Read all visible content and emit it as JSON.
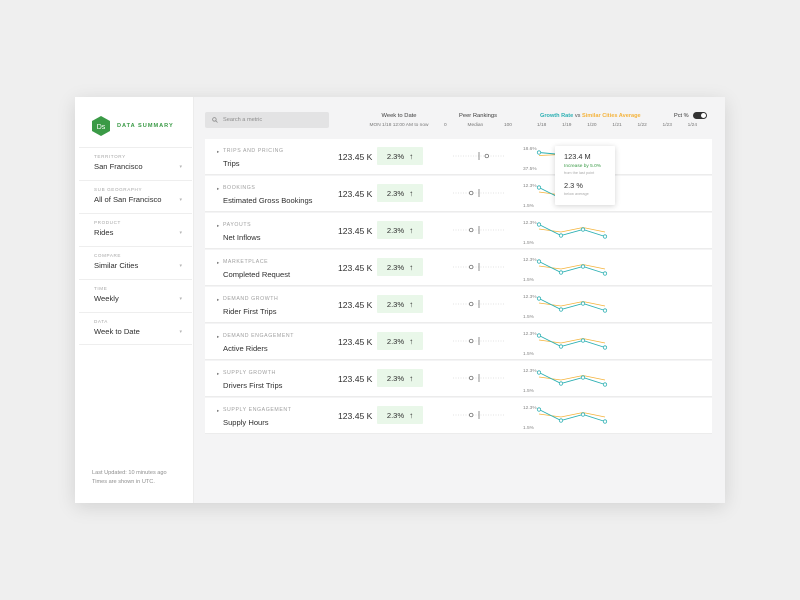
{
  "brand": {
    "logo_text": "Ds",
    "title": "DATA SUMMARY"
  },
  "filters": [
    {
      "label": "TERRITORY",
      "value": "San Francisco"
    },
    {
      "label": "SUB GEOGRAPHY",
      "value": "All of San Francisco"
    },
    {
      "label": "PRODUCT",
      "value": "Rides"
    },
    {
      "label": "COMPARE",
      "value": "Similar Cities"
    },
    {
      "label": "TIME",
      "value": "Weekly"
    },
    {
      "label": "DATA",
      "value": "Week to Date"
    }
  ],
  "footer": {
    "line1": "Last Updated: 10 minutes ago",
    "line2": "Times are shown in UTC."
  },
  "search": {
    "placeholder": "Search a metric"
  },
  "header": {
    "week_to_date": "Week to Date",
    "week_range": "MON 1/18 12:00 AM to now",
    "peer_rankings": "Peer Rankings",
    "peer_ticks": [
      "0",
      "Median",
      "100"
    ],
    "growth_rate": "Growth Rate",
    "vs": "vs",
    "similar_cities": "Similar Cities Average",
    "dates": [
      "1/18",
      "1/19",
      "1/20",
      "1/21",
      "1/22",
      "1/23",
      "1/24"
    ],
    "pct_toggle_label": "Pct %",
    "pct_toggle_on": true
  },
  "colors": {
    "growth": "#2cb0b3",
    "similar": "#f4b33b",
    "brand": "#3a9a46",
    "badge": "#e9f7e9"
  },
  "rows": [
    {
      "category": "TRIPS AND PRICING",
      "metric": "Trips",
      "value": "123.45 K",
      "change": "2.3%",
      "y_max": "18.6%",
      "y_min": "37.5%",
      "peer_percentile": 0.65,
      "growth": [
        0.55,
        0.35,
        -0.45,
        0.05
      ],
      "similar": [
        0.25,
        0.35,
        0.0,
        0.15
      ]
    },
    {
      "category": "BOOKINGS",
      "metric": "Estimated Gross Bookings",
      "value": "123.45 K",
      "change": "2.3%",
      "y_max": "12.3%",
      "y_min": "1.5%",
      "peer_percentile": 0.35,
      "growth": [
        0.75,
        -0.35,
        0.25,
        -0.45
      ],
      "similar": [
        0.3,
        0.0,
        0.45,
        0.0
      ]
    },
    {
      "category": "PAYOUTS",
      "metric": "Net Inflows",
      "value": "123.45 K",
      "change": "2.3%",
      "y_max": "12.3%",
      "y_min": "1.5%",
      "peer_percentile": 0.35,
      "growth": [
        0.75,
        -0.35,
        0.25,
        -0.45
      ],
      "similar": [
        0.3,
        0.0,
        0.45,
        0.0
      ]
    },
    {
      "category": "MARKETPLACE",
      "metric": "Completed Request",
      "value": "123.45 K",
      "change": "2.3%",
      "y_max": "12.3%",
      "y_min": "1.5%",
      "peer_percentile": 0.35,
      "growth": [
        0.75,
        -0.35,
        0.25,
        -0.45
      ],
      "similar": [
        0.3,
        0.0,
        0.45,
        0.0
      ]
    },
    {
      "category": "DEMAND GROWTH",
      "metric": "Rider First Trips",
      "value": "123.45 K",
      "change": "2.3%",
      "y_max": "12.3%",
      "y_min": "1.5%",
      "peer_percentile": 0.35,
      "growth": [
        0.75,
        -0.35,
        0.25,
        -0.45
      ],
      "similar": [
        0.3,
        0.0,
        0.45,
        0.0
      ]
    },
    {
      "category": "DEMAND ENGAGEMENT",
      "metric": "Active Riders",
      "value": "123.45 K",
      "change": "2.3%",
      "y_max": "12.3%",
      "y_min": "1.5%",
      "peer_percentile": 0.35,
      "growth": [
        0.75,
        -0.35,
        0.25,
        -0.45
      ],
      "similar": [
        0.3,
        0.0,
        0.45,
        0.0
      ]
    },
    {
      "category": "SUPPLY GROWTH",
      "metric": "Drivers First Trips",
      "value": "123.45 K",
      "change": "2.3%",
      "y_max": "12.3%",
      "y_min": "1.5%",
      "peer_percentile": 0.35,
      "growth": [
        0.75,
        -0.35,
        0.25,
        -0.45
      ],
      "similar": [
        0.3,
        0.0,
        0.45,
        0.0
      ]
    },
    {
      "category": "SUPPLY ENGAGEMENT",
      "metric": "Supply Hours",
      "value": "123.45 K",
      "change": "2.3%",
      "y_max": "12.3%",
      "y_min": "1.5%",
      "peer_percentile": 0.35,
      "growth": [
        0.75,
        -0.35,
        0.25,
        -0.45
      ],
      "similar": [
        0.3,
        0.0,
        0.45,
        0.0
      ]
    }
  ],
  "tooltip": {
    "value": "123.4 M",
    "growth_text": "Increase by 5.0%",
    "growth_note": "from the last point",
    "pct": "2.3 %",
    "pct_note": "below average"
  }
}
